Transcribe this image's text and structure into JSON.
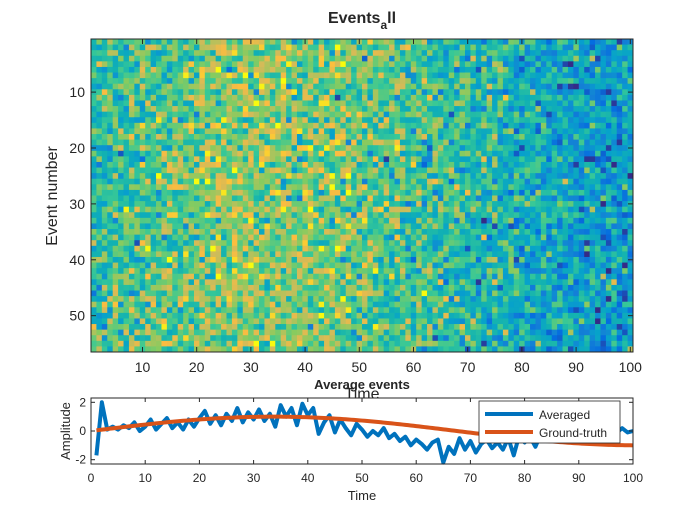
{
  "chart_data": [
    {
      "type": "heatmap",
      "title": "Events",
      "title_subscript": "a",
      "title_suffix": "ll",
      "xlabel": "Time",
      "ylabel": "Event number",
      "xlim": [
        0.5,
        100.5
      ],
      "ylim": [
        0.5,
        56.5
      ],
      "y_reversed": true,
      "xticks": [
        10,
        20,
        30,
        40,
        50,
        60,
        70,
        80,
        90,
        100
      ],
      "yticks": [
        10,
        20,
        30,
        40,
        50
      ],
      "n_rows": 56,
      "n_cols": 100,
      "colormap": "parula",
      "color_range": [
        -3,
        3
      ],
      "note_values": "Each row is an event trace: a sine of amplitude 1 (peak near time 33) plus unit-variance noise"
    },
    {
      "type": "line",
      "title": "Average events",
      "xlabel": "Time",
      "ylabel": "Amplitude",
      "xlim": [
        0,
        100
      ],
      "ylim": [
        -2.3,
        2.3
      ],
      "xticks": [
        0,
        10,
        20,
        30,
        40,
        50,
        60,
        70,
        80,
        90,
        100
      ],
      "yticks": [
        -2,
        0,
        2
      ],
      "legend_position": "top-right",
      "series": [
        {
          "name": "Averaged",
          "color": "#0072BD",
          "x": [
            1,
            2,
            3,
            4,
            5,
            6,
            7,
            8,
            9,
            10,
            11,
            12,
            13,
            14,
            15,
            16,
            17,
            18,
            19,
            20,
            21,
            22,
            23,
            24,
            25,
            26,
            27,
            28,
            29,
            30,
            31,
            32,
            33,
            34,
            35,
            36,
            37,
            38,
            39,
            40,
            41,
            42,
            43,
            44,
            45,
            46,
            47,
            48,
            49,
            50,
            51,
            52,
            53,
            54,
            55,
            56,
            57,
            58,
            59,
            60,
            61,
            62,
            63,
            64,
            65,
            66,
            67,
            68,
            69,
            70,
            71,
            72,
            73,
            74,
            75,
            76,
            77,
            78,
            79,
            80,
            81,
            82,
            83,
            84,
            85,
            86,
            87,
            88,
            89,
            90,
            91,
            92,
            93,
            94,
            95,
            96,
            97,
            98,
            99,
            100
          ],
          "values": [
            -1.7,
            2.0,
            0.1,
            0.3,
            0.1,
            0.4,
            0.2,
            0.6,
            0.0,
            0.3,
            0.8,
            0.1,
            0.5,
            0.9,
            0.2,
            0.6,
            0.1,
            0.8,
            0.3,
            0.9,
            1.4,
            0.5,
            1.1,
            0.4,
            1.2,
            0.7,
            1.6,
            0.6,
            1.3,
            0.8,
            1.5,
            0.7,
            1.2,
            0.3,
            1.8,
            1.0,
            1.6,
            0.4,
            1.9,
            1.1,
            1.6,
            -0.2,
            0.6,
            1.1,
            -0.1,
            0.8,
            0.2,
            -0.3,
            0.5,
            0.1,
            -0.4,
            0.0,
            -0.3,
            0.2,
            -0.5,
            -0.2,
            -0.7,
            -0.4,
            -1.0,
            -0.6,
            -0.9,
            -1.3,
            -0.8,
            -0.6,
            -2.2,
            -1.1,
            -1.6,
            -0.5,
            -1.3,
            -0.7,
            -1.5,
            -0.9,
            -0.6,
            -1.2,
            -0.8,
            -1.3,
            -0.5,
            -1.7,
            -0.3,
            -0.8,
            -0.4,
            -1.1,
            -0.2,
            -0.7,
            -0.5,
            -0.1,
            -0.6,
            -0.3,
            0.1,
            -0.4,
            -0.1,
            0.2,
            -0.3,
            0.0,
            -0.2,
            0.1,
            -0.1,
            0.2,
            -0.1,
            0.0
          ]
        },
        {
          "name": "Ground-truth",
          "color": "#D95319",
          "function": "sin(2*pi*t/135)",
          "x_start": 1,
          "x_end": 100
        }
      ]
    }
  ]
}
